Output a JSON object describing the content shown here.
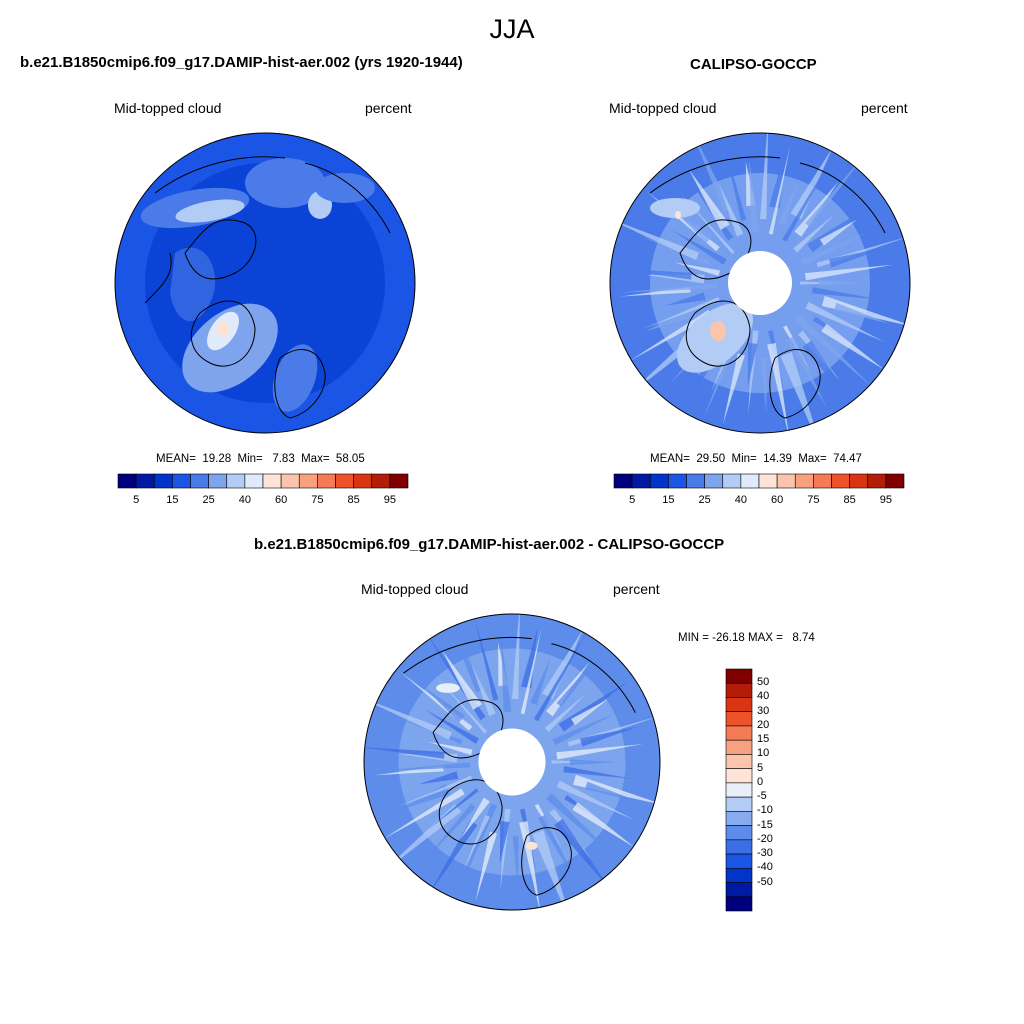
{
  "figure": {
    "title": "JJA"
  },
  "panels": [
    {
      "title": "b.e21.B1850cmip6.f09_g17.DAMIP-hist-aer.002 (yrs 1920-1944)",
      "left_label": "Mid-topped cloud",
      "right_label": "percent",
      "stats": "MEAN=  19.28  Min=   7.83  Max=  58.05",
      "has_hole": false
    },
    {
      "title": "CALIPSO-GOCCP",
      "left_label": "Mid-topped cloud",
      "right_label": "percent",
      "stats": "MEAN=  29.50  Min=  14.39  Max=  74.47",
      "has_hole": true
    },
    {
      "title": "b.e21.B1850cmip6.f09_g17.DAMIP-hist-aer.002 - CALIPSO-GOCCP",
      "left_label": "Mid-topped cloud",
      "right_label": "percent",
      "stats": "MIN = -26.18 MAX =   8.74",
      "has_hole": true
    }
  ],
  "colorbar_abs": {
    "colors": [
      "#00007f",
      "#0019a3",
      "#0035c8",
      "#1a55e6",
      "#4a7be8",
      "#7ea4ee",
      "#b3ccf5",
      "#dfeafb",
      "#fde4d6",
      "#fbc5ad",
      "#f8a180",
      "#f47b54",
      "#ee5228",
      "#d93512",
      "#b31d08",
      "#800000"
    ],
    "tick_labels": [
      "5",
      "15",
      "25",
      "40",
      "60",
      "75",
      "85",
      "95"
    ]
  },
  "colorbar_diff": {
    "colors": [
      "#00007f",
      "#0019a3",
      "#0035c8",
      "#1a55e6",
      "#3c6ee6",
      "#5d8cea",
      "#86abef",
      "#b3ccf5",
      "#e8eff9",
      "#fde4d6",
      "#fbc5ad",
      "#f8a180",
      "#f47b54",
      "#ee5228",
      "#d93512",
      "#b31d08",
      "#800000"
    ],
    "tick_labels": [
      "50",
      "40",
      "30",
      "20",
      "15",
      "10",
      "5",
      "0",
      "-5",
      "-10",
      "-15",
      "-20",
      "-30",
      "-40",
      "-50"
    ]
  }
}
